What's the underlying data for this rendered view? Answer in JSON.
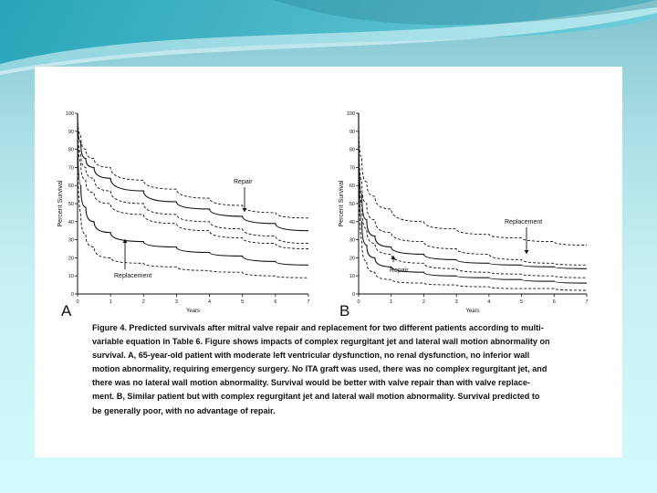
{
  "chart_data": [
    {
      "type": "line",
      "panel_label": "A",
      "xlabel": "Years",
      "ylabel": "Percent Survival",
      "xlim": [
        0,
        7
      ],
      "ylim": [
        0,
        100
      ],
      "x_ticks": [
        "0",
        "1",
        "2",
        "3",
        "4",
        "5",
        "6",
        "7"
      ],
      "y_ticks": [
        "0",
        "10",
        "20",
        "30",
        "40",
        "50",
        "60",
        "70",
        "80",
        "90",
        "100"
      ],
      "annotations": [
        "Repair",
        "Replacement"
      ],
      "series": [
        {
          "style": "dashed",
          "x": [
            0,
            0.1,
            0.25,
            0.5,
            1,
            2,
            3,
            4,
            5,
            6,
            7
          ],
          "y": [
            100,
            88,
            80,
            75,
            70,
            63,
            58,
            53,
            49,
            45,
            42
          ]
        },
        {
          "style": "solid",
          "x": [
            0,
            0.1,
            0.25,
            0.5,
            1,
            2,
            3,
            4,
            5,
            6,
            7
          ],
          "y": [
            100,
            84,
            75,
            70,
            64,
            57,
            51,
            47,
            43,
            39,
            35
          ]
        },
        {
          "style": "dashed",
          "x": [
            0,
            0.1,
            0.25,
            0.5,
            1,
            2,
            3,
            4,
            5,
            6,
            7
          ],
          "y": [
            100,
            78,
            70,
            64,
            57,
            50,
            44,
            40,
            36,
            32,
            28
          ]
        },
        {
          "style": "dashed",
          "x": [
            0,
            0.1,
            0.25,
            0.5,
            1,
            2,
            3,
            4,
            5,
            6,
            7
          ],
          "y": [
            100,
            73,
            63,
            56,
            50,
            44,
            39,
            35,
            31,
            28,
            25
          ]
        },
        {
          "style": "solid",
          "x": [
            0,
            0.1,
            0.25,
            0.5,
            1,
            2,
            3,
            4,
            5,
            6,
            7
          ],
          "y": [
            100,
            60,
            48,
            40,
            34,
            29,
            26,
            23,
            21,
            18,
            16
          ]
        },
        {
          "style": "dashed",
          "x": [
            0,
            0.1,
            0.25,
            0.5,
            1,
            2,
            3,
            4,
            5,
            6,
            7
          ],
          "y": [
            100,
            45,
            33,
            26,
            20,
            17,
            15,
            13,
            12,
            10,
            9
          ]
        }
      ]
    },
    {
      "type": "line",
      "panel_label": "B",
      "xlabel": "Years",
      "ylabel": "Percent Survival",
      "xlim": [
        0,
        7
      ],
      "ylim": [
        0,
        100
      ],
      "x_ticks": [
        "0",
        "1",
        "2",
        "3",
        "4",
        "5",
        "6",
        "7"
      ],
      "y_ticks": [
        "0",
        "10",
        "20",
        "30",
        "40",
        "50",
        "60",
        "70",
        "80",
        "90",
        "100"
      ],
      "annotations": [
        "Replacement",
        "Repair"
      ],
      "series": [
        {
          "style": "dashed",
          "x": [
            0,
            0.1,
            0.25,
            0.5,
            1,
            2,
            3,
            4,
            5,
            6,
            7
          ],
          "y": [
            100,
            75,
            62,
            54,
            47,
            40,
            36,
            33,
            31,
            29,
            27
          ]
        },
        {
          "style": "dashed",
          "x": [
            0,
            0.1,
            0.25,
            0.5,
            1,
            2,
            3,
            4,
            5,
            6,
            7
          ],
          "y": [
            100,
            62,
            50,
            41,
            34,
            29,
            25,
            22,
            19,
            17,
            16
          ]
        },
        {
          "style": "solid",
          "x": [
            0,
            0.1,
            0.25,
            0.5,
            1,
            2,
            3,
            4,
            5,
            6,
            7
          ],
          "y": [
            100,
            55,
            41,
            32,
            26,
            22,
            19,
            17,
            16,
            15,
            14
          ]
        },
        {
          "style": "dashed",
          "x": [
            0,
            0.1,
            0.25,
            0.5,
            1,
            2,
            3,
            4,
            5,
            6,
            7
          ],
          "y": [
            100,
            50,
            36,
            28,
            22,
            17,
            14,
            12,
            11,
            10,
            9
          ]
        },
        {
          "style": "solid",
          "x": [
            0,
            0.1,
            0.25,
            0.5,
            1,
            2,
            3,
            4,
            5,
            6,
            7
          ],
          "y": [
            100,
            40,
            27,
            20,
            15,
            12,
            10,
            9,
            8,
            7,
            6
          ]
        },
        {
          "style": "dashed",
          "x": [
            0,
            0.1,
            0.25,
            0.5,
            1,
            2,
            3,
            4,
            5,
            6,
            7
          ],
          "y": [
            100,
            30,
            18,
            12,
            8,
            6,
            5,
            4,
            3,
            3,
            2
          ]
        }
      ]
    }
  ],
  "caption_lines": [
    "Figure 4. Predicted survivals after mitral valve repair and replacement for two different patients according to multi-",
    "variable equation in Table 6. Figure shows impacts of complex regurgitant jet and lateral wall motion abnormality on",
    "survival. A, 65-year-old patient with moderate left ventricular dysfunction, no renal dysfunction, no inferior wall",
    "motion abnormality, requiring emergency surgery. No ITA graft was used, there was no complex regurgitant jet, and",
    "there was no lateral wall motion abnormality. Survival would be better with valve repair than with valve replace-",
    "ment. B, Similar patient but with complex regurgitant jet and lateral wall motion abnormality. Survival predicted to",
    "be generally poor, with no advantage of repair."
  ]
}
